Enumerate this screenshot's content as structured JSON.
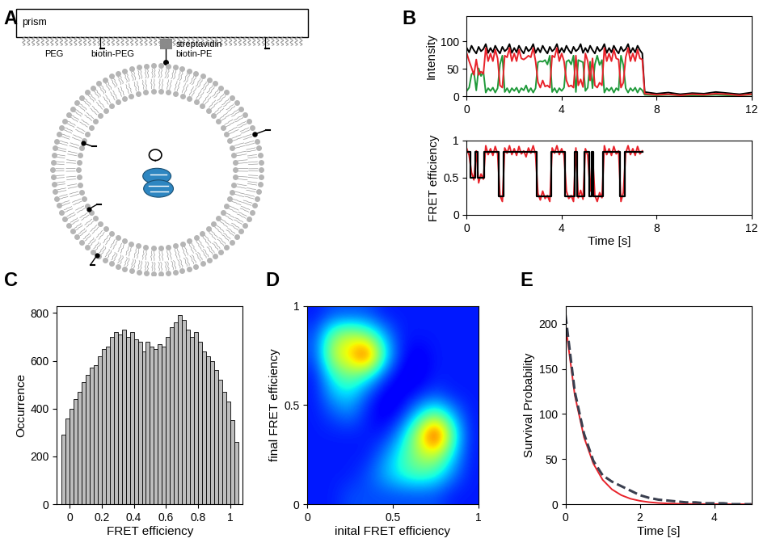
{
  "diagram": {
    "panel": "A",
    "labels": {
      "prism": "prism",
      "peg": "PEG",
      "biotin_peg": "biotin-PEG",
      "streptavidin": "streptavidin",
      "biotin_pe": "biotin-PE"
    }
  },
  "chart_data": [
    {
      "type": "line",
      "panel": "B",
      "ylabel": "Intensity",
      "xlim": [
        0,
        12
      ],
      "xticks": [
        0,
        4,
        8,
        12
      ],
      "ylim": [
        0,
        145
      ],
      "yticks": [
        0,
        50,
        100
      ],
      "x": [
        0,
        0.1,
        0.2,
        0.3,
        0.4,
        0.5,
        0.6,
        0.7,
        0.8,
        0.9,
        1,
        1.1,
        1.2,
        1.3,
        1.4,
        1.5,
        1.6,
        1.7,
        1.8,
        1.9,
        2,
        2.1,
        2.2,
        2.3,
        2.4,
        2.5,
        2.6,
        2.7,
        2.8,
        2.9,
        3,
        3.1,
        3.2,
        3.3,
        3.4,
        3.5,
        3.6,
        3.7,
        3.8,
        3.9,
        4,
        4.1,
        4.2,
        4.3,
        4.4,
        4.5,
        4.6,
        4.7,
        4.8,
        4.9,
        5,
        5.1,
        5.2,
        5.3,
        5.4,
        5.5,
        5.6,
        5.7,
        5.8,
        5.9,
        6,
        6.1,
        6.2,
        6.3,
        6.4,
        6.5,
        6.6,
        6.7,
        6.8,
        6.9,
        7,
        7.1,
        7.2,
        7.3,
        7.4,
        7.5,
        8,
        8.5,
        9,
        9.5,
        10,
        10.5,
        11,
        11.5,
        12
      ],
      "series": [
        {
          "color": "#000000",
          "line_style": "solid",
          "values": [
            88,
            80,
            92,
            84,
            78,
            90,
            82,
            86,
            95,
            79,
            88,
            80,
            92,
            84,
            78,
            90,
            82,
            86,
            95,
            79,
            88,
            80,
            92,
            84,
            78,
            90,
            82,
            86,
            95,
            79,
            88,
            80,
            92,
            84,
            78,
            90,
            82,
            86,
            95,
            79,
            88,
            80,
            92,
            84,
            78,
            90,
            82,
            86,
            95,
            79,
            88,
            80,
            92,
            84,
            78,
            90,
            82,
            86,
            95,
            79,
            88,
            80,
            92,
            84,
            78,
            90,
            82,
            86,
            95,
            79,
            88,
            80,
            92,
            84,
            78,
            8,
            5,
            7,
            4,
            6,
            5,
            8,
            6,
            4,
            7
          ]
        },
        {
          "color": "#1f9a3a",
          "line_style": "solid",
          "values": [
            10,
            16,
            40,
            45,
            11,
            51,
            37,
            45,
            7,
            15,
            10,
            16,
            7,
            15,
            58,
            74,
            8,
            15,
            7,
            15,
            10,
            16,
            7,
            15,
            11,
            20,
            8,
            15,
            7,
            15,
            62,
            64,
            63,
            66,
            58,
            74,
            8,
            15,
            7,
            15,
            10,
            16,
            63,
            66,
            58,
            74,
            8,
            66,
            64,
            62,
            10,
            16,
            63,
            15,
            58,
            74,
            57,
            66,
            7,
            15,
            10,
            16,
            7,
            15,
            11,
            74,
            57,
            15,
            7,
            15,
            10,
            16,
            7,
            15,
            11,
            3,
            2,
            3,
            2,
            2,
            2,
            3,
            2,
            2,
            3
          ]
        },
        {
          "color": "#e8222a",
          "line_style": "solid",
          "values": [
            78,
            64,
            52,
            39,
            67,
            39,
            45,
            41,
            88,
            64,
            78,
            64,
            85,
            69,
            20,
            16,
            74,
            71,
            88,
            64,
            78,
            64,
            85,
            69,
            67,
            70,
            74,
            71,
            88,
            64,
            26,
            16,
            29,
            18,
            20,
            16,
            74,
            71,
            88,
            64,
            78,
            64,
            29,
            18,
            20,
            16,
            74,
            20,
            31,
            17,
            78,
            64,
            29,
            69,
            20,
            16,
            25,
            20,
            88,
            64,
            78,
            64,
            85,
            69,
            67,
            16,
            25,
            71,
            88,
            64,
            78,
            64,
            85,
            69,
            67,
            5,
            3,
            4,
            2,
            4,
            3,
            5,
            4,
            2,
            4
          ]
        }
      ]
    },
    {
      "type": "line",
      "xlabel": "Time [s]",
      "ylabel": "FRET efficiency",
      "xlim": [
        0,
        12
      ],
      "xticks": [
        0,
        4,
        8,
        12
      ],
      "ylim": [
        0,
        1
      ],
      "yticks": [
        0,
        0.5,
        1
      ],
      "x": [
        0,
        0.1,
        0.2,
        0.3,
        0.4,
        0.5,
        0.6,
        0.7,
        0.8,
        0.9,
        1,
        1.1,
        1.2,
        1.3,
        1.4,
        1.5,
        1.6,
        1.7,
        1.8,
        1.9,
        2,
        2.1,
        2.2,
        2.3,
        2.4,
        2.5,
        2.6,
        2.7,
        2.8,
        2.9,
        3,
        3.1,
        3.2,
        3.3,
        3.4,
        3.5,
        3.6,
        3.7,
        3.8,
        3.9,
        4,
        4.1,
        4.2,
        4.3,
        4.4,
        4.5,
        4.6,
        4.7,
        4.8,
        4.9,
        5,
        5.1,
        5.2,
        5.3,
        5.4,
        5.5,
        5.6,
        5.7,
        5.8,
        5.9,
        6,
        6.1,
        6.2,
        6.3,
        6.4,
        6.5,
        6.6,
        6.7,
        6.8,
        6.9,
        7,
        7.1,
        7.2,
        7.3,
        7.4
      ],
      "series": [
        {
          "color": "#e8222a",
          "line_style": "solid",
          "values": [
            0.89,
            0.8,
            0.57,
            0.47,
            0.86,
            0.43,
            0.55,
            0.48,
            0.93,
            0.81,
            0.89,
            0.8,
            0.92,
            0.82,
            0.26,
            0.18,
            0.9,
            0.83,
            0.93,
            0.81,
            0.89,
            0.8,
            0.92,
            0.82,
            0.86,
            0.78,
            0.9,
            0.83,
            0.93,
            0.81,
            0.29,
            0.2,
            0.32,
            0.22,
            0.26,
            0.18,
            0.9,
            0.83,
            0.93,
            0.81,
            0.89,
            0.8,
            0.32,
            0.22,
            0.26,
            0.18,
            0.9,
            0.23,
            0.33,
            0.21,
            0.89,
            0.8,
            0.32,
            0.82,
            0.26,
            0.18,
            0.3,
            0.23,
            0.93,
            0.81,
            0.89,
            0.8,
            0.92,
            0.82,
            0.86,
            0.18,
            0.3,
            0.83,
            0.93,
            0.81,
            0.89,
            0.8,
            0.92,
            0.82,
            0.86
          ]
        },
        {
          "type": "step",
          "color": "#000000",
          "line_style": "solid",
          "values": [
            0.85,
            0.85,
            0.5,
            0.5,
            0.85,
            0.5,
            0.5,
            0.5,
            0.85,
            0.85,
            0.85,
            0.85,
            0.85,
            0.85,
            0.25,
            0.25,
            0.85,
            0.85,
            0.85,
            0.85,
            0.85,
            0.85,
            0.85,
            0.85,
            0.85,
            0.85,
            0.85,
            0.85,
            0.85,
            0.85,
            0.25,
            0.25,
            0.25,
            0.25,
            0.25,
            0.25,
            0.85,
            0.85,
            0.85,
            0.85,
            0.85,
            0.85,
            0.25,
            0.25,
            0.25,
            0.25,
            0.85,
            0.25,
            0.25,
            0.25,
            0.85,
            0.85,
            0.25,
            0.85,
            0.25,
            0.25,
            0.25,
            0.25,
            0.85,
            0.85,
            0.85,
            0.85,
            0.85,
            0.85,
            0.85,
            0.25,
            0.25,
            0.85,
            0.85,
            0.85,
            0.85,
            0.85,
            0.85,
            0.85,
            0.85
          ]
        }
      ]
    },
    {
      "type": "histogram",
      "panel": "C",
      "xlabel": "FRET efficiency",
      "ylabel": "Occurrence",
      "color": "#bdbdbd",
      "xlim": [
        -0.08,
        1.08
      ],
      "xticks": [
        0,
        0.2,
        0.4,
        0.6,
        0.8,
        1
      ],
      "ylim": [
        0,
        830
      ],
      "yticks": [
        0,
        200,
        400,
        600,
        800
      ],
      "bins": [
        -0.05,
        -0.025,
        0,
        0.025,
        0.05,
        0.075,
        0.1,
        0.125,
        0.15,
        0.175,
        0.2,
        0.225,
        0.25,
        0.275,
        0.3,
        0.325,
        0.35,
        0.375,
        0.4,
        0.425,
        0.45,
        0.475,
        0.5,
        0.525,
        0.55,
        0.575,
        0.6,
        0.625,
        0.65,
        0.675,
        0.7,
        0.725,
        0.75,
        0.775,
        0.8,
        0.825,
        0.85,
        0.875,
        0.9,
        0.925,
        0.95,
        0.975,
        1,
        1.025,
        1.05
      ],
      "values": [
        290,
        360,
        400,
        440,
        470,
        510,
        540,
        570,
        580,
        620,
        650,
        660,
        700,
        720,
        710,
        730,
        700,
        720,
        690,
        680,
        640,
        680,
        660,
        650,
        670,
        660,
        700,
        740,
        760,
        790,
        770,
        730,
        700,
        720,
        680,
        640,
        620,
        600,
        560,
        520,
        470,
        430,
        350,
        260
      ]
    },
    {
      "type": "heatmap",
      "panel": "D",
      "xlabel": "inital FRET efficiency",
      "ylabel": "final FRET efficiency",
      "xlim": [
        0,
        1
      ],
      "xticks": [
        0,
        0.5,
        1
      ],
      "ylim": [
        0,
        1
      ],
      "yticks": [
        0,
        0.5,
        1
      ],
      "color_range": [
        0,
        1
      ],
      "cells": [
        [
          0.15,
          0.15,
          0.2,
          0.2,
          0.2,
          0.2,
          0.2,
          0.2,
          0.15,
          0.15
        ],
        [
          0.15,
          0.15,
          0.15,
          0.2,
          0.3,
          0.4,
          0.45,
          0.4,
          0.25,
          0.15
        ],
        [
          0.15,
          0.15,
          0.15,
          0.15,
          0.25,
          0.4,
          0.55,
          0.6,
          0.35,
          0.15
        ],
        [
          0.15,
          0.15,
          0.15,
          0.15,
          0.15,
          0.3,
          0.6,
          1.0,
          0.45,
          0.15
        ],
        [
          0.15,
          0.2,
          0.25,
          0.15,
          0.1,
          0.15,
          0.35,
          0.5,
          0.3,
          0.15
        ],
        [
          0.15,
          0.3,
          0.35,
          0.2,
          0.1,
          0.1,
          0.15,
          0.2,
          0.15,
          0.15
        ],
        [
          0.15,
          0.4,
          0.5,
          0.4,
          0.2,
          0.1,
          0.1,
          0.15,
          0.15,
          0.15
        ],
        [
          0.2,
          0.6,
          0.7,
          0.95,
          0.4,
          0.15,
          0.1,
          0.15,
          0.15,
          0.15
        ],
        [
          0.2,
          0.5,
          0.6,
          0.5,
          0.3,
          0.15,
          0.15,
          0.15,
          0.15,
          0.15
        ],
        [
          0.15,
          0.2,
          0.2,
          0.2,
          0.15,
          0.15,
          0.15,
          0.15,
          0.15,
          0.15
        ]
      ]
    },
    {
      "type": "line",
      "panel": "E",
      "xlabel": "Time [s]",
      "ylabel": "Survival Probability",
      "xlim": [
        0,
        5
      ],
      "xticks": [
        0,
        2,
        4
      ],
      "ylim": [
        0,
        220
      ],
      "yticks": [
        0,
        50,
        100,
        150,
        200
      ],
      "x": [
        0,
        0.25,
        0.5,
        0.75,
        1,
        1.25,
        1.5,
        1.75,
        2,
        2.25,
        2.5,
        2.75,
        3,
        3.25,
        3.5,
        3.75,
        4,
        4.25,
        4.5,
        4.75,
        5
      ],
      "series": [
        {
          "color": "#e8222a",
          "line_style": "solid",
          "values": [
            200,
            121,
            74,
            45,
            27,
            16.4,
            10,
            6,
            3.7,
            2.2,
            1.3,
            0.8,
            0.5,
            0.3,
            0.2,
            0.1,
            0.1,
            0,
            0,
            0,
            0
          ]
        },
        {
          "color": "#3a3f4f",
          "line_style": "dashed",
          "values": [
            210,
            125,
            78,
            48,
            32,
            25,
            20,
            15,
            10,
            7,
            5,
            4,
            3,
            2,
            2,
            1,
            1,
            1,
            0,
            0,
            0
          ]
        }
      ]
    }
  ]
}
